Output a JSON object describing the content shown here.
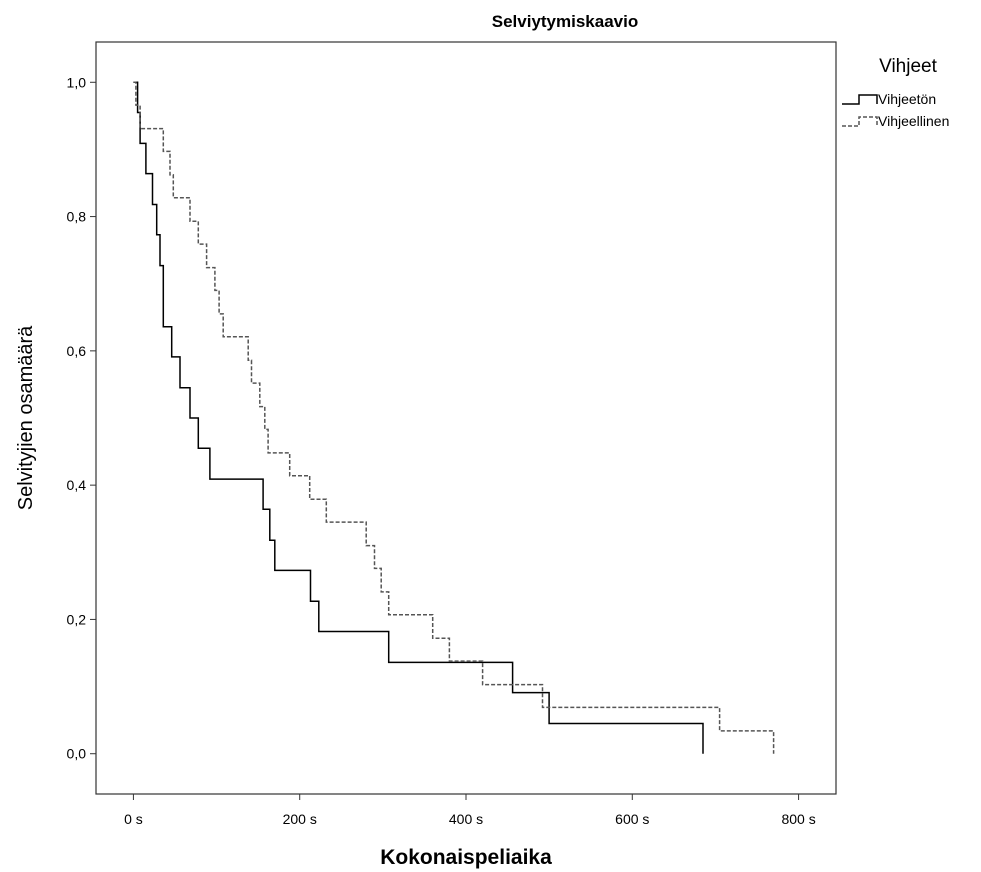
{
  "chart_data": {
    "type": "line",
    "step": true,
    "title": "Selviytymiskaavio",
    "xlabel": "Kokonaispeliaika",
    "ylabel": "Selvityjien osamäärä",
    "xlim": [
      -45,
      845
    ],
    "ylim": [
      -0.06,
      1.06
    ],
    "x_ticks": [
      0,
      200,
      400,
      600,
      800
    ],
    "x_tick_labels": [
      "0 s",
      "200 s",
      "400 s",
      "600 s",
      "800 s"
    ],
    "y_ticks": [
      0.0,
      0.2,
      0.4,
      0.6,
      0.8,
      1.0
    ],
    "y_tick_labels": [
      "0,0",
      "0,2",
      "0,4",
      "0,6",
      "0,8",
      "1,0"
    ],
    "grid": false,
    "legend": {
      "title": "Vihjeet",
      "placement": "right"
    },
    "series": [
      {
        "name": "Vihjeetön",
        "style": "solid",
        "color": "#000000",
        "x": [
          0,
          5,
          8,
          15,
          23,
          28,
          32,
          36,
          46,
          56,
          68,
          78,
          92,
          156,
          164,
          170,
          178,
          213,
          223,
          230,
          307,
          456,
          500,
          685
        ],
        "y": [
          1.0,
          0.955,
          0.909,
          0.864,
          0.818,
          0.773,
          0.727,
          0.636,
          0.591,
          0.545,
          0.5,
          0.455,
          0.409,
          0.364,
          0.318,
          0.273,
          0.273,
          0.227,
          0.182,
          0.182,
          0.136,
          0.091,
          0.045,
          0.0
        ]
      },
      {
        "name": "Vihjeellinen",
        "style": "dashed",
        "color": "#555555",
        "x": [
          0,
          3,
          8,
          32,
          36,
          44,
          48,
          68,
          78,
          88,
          98,
          103,
          108,
          122,
          138,
          142,
          152,
          158,
          162,
          168,
          188,
          212,
          232,
          232,
          280,
          290,
          298,
          307,
          360,
          380,
          420,
          485,
          492,
          705,
          770
        ],
        "y": [
          1.0,
          0.966,
          0.931,
          0.931,
          0.897,
          0.862,
          0.828,
          0.793,
          0.759,
          0.724,
          0.69,
          0.655,
          0.621,
          0.621,
          0.586,
          0.552,
          0.517,
          0.483,
          0.448,
          0.448,
          0.414,
          0.379,
          0.345,
          0.345,
          0.31,
          0.276,
          0.241,
          0.207,
          0.172,
          0.138,
          0.103,
          0.103,
          0.069,
          0.034,
          0.0
        ]
      }
    ]
  }
}
